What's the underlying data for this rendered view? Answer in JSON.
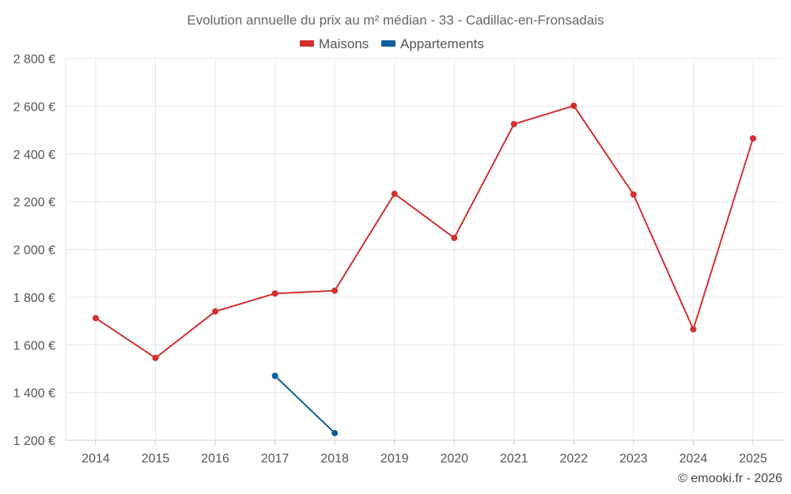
{
  "chart_data": {
    "type": "line",
    "title": "Evolution annuelle du prix au m² médian - 33 - Cadillac-en-Fronsadais",
    "categories": [
      "2014",
      "2015",
      "2016",
      "2017",
      "2018",
      "2019",
      "2020",
      "2021",
      "2022",
      "2023",
      "2024",
      "2025"
    ],
    "series": [
      {
        "name": "Maisons",
        "color": "#d32f2f",
        "values": [
          1712,
          1545,
          1740,
          1815,
          1827,
          2233,
          2048,
          2525,
          2602,
          2230,
          1665,
          2465
        ]
      },
      {
        "name": "Appartements",
        "color": "#0d5e9c",
        "values": [
          null,
          null,
          null,
          1470,
          1230,
          null,
          null,
          null,
          null,
          null,
          null,
          null
        ]
      }
    ],
    "ylim": [
      1200,
      2800
    ],
    "yticks": [
      1200,
      1400,
      1600,
      1800,
      2000,
      2200,
      2400,
      2600,
      2800
    ],
    "ytick_labels": [
      "1 200 €",
      "1 400 €",
      "1 600 €",
      "1 800 €",
      "2 000 €",
      "2 200 €",
      "2 400 €",
      "2 600 €",
      "2 800 €"
    ],
    "grid": true,
    "legend_position": "top-center"
  },
  "footer": {
    "credit": "© emooki.fr - 2026"
  }
}
